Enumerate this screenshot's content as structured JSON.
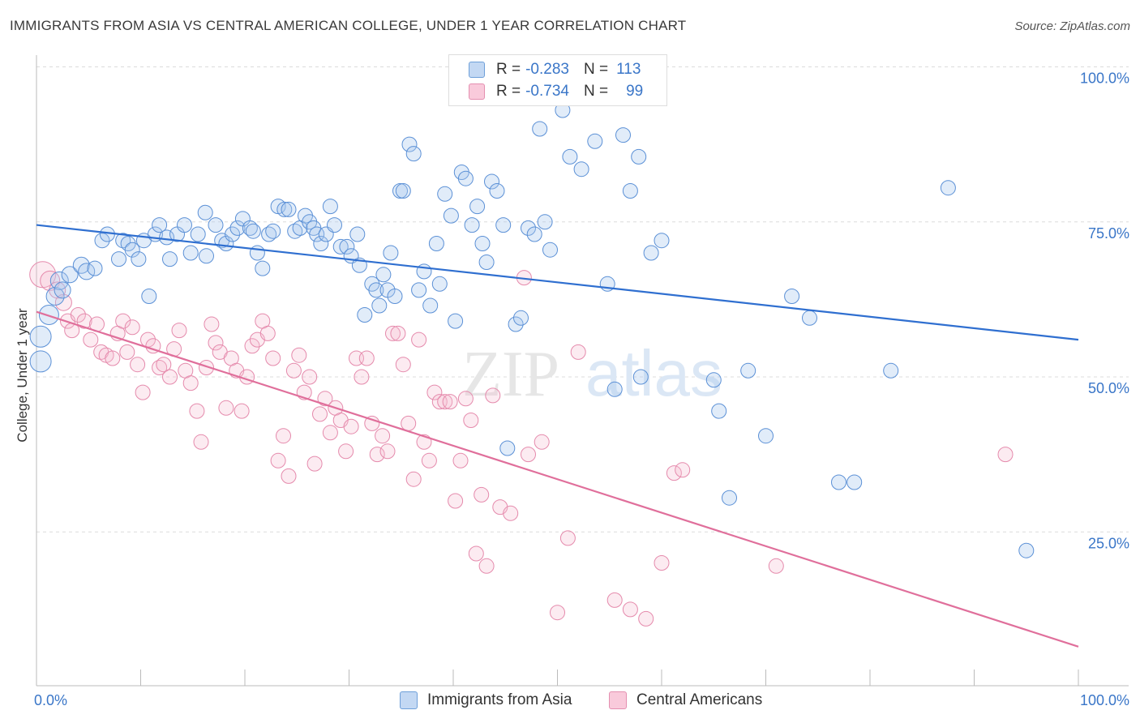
{
  "title": "IMMIGRANTS FROM ASIA VS CENTRAL AMERICAN COLLEGE, UNDER 1 YEAR CORRELATION CHART",
  "source": "Source: ZipAtlas.com",
  "watermark": {
    "zip": "ZIP",
    "atlas": "atlas"
  },
  "legend": {
    "series1": {
      "r_label": "R =",
      "r_value": "-0.283",
      "n_label": "N =",
      "n_value": "113"
    },
    "series2": {
      "r_label": "R =",
      "r_value": "-0.734",
      "n_label": "N =",
      "n_value": "99"
    }
  },
  "colors": {
    "blue": "#3a76c8",
    "blue_fill": "#aac8ee",
    "pink": "#e06f9b",
    "pink_fill": "#f6bcd0",
    "grid": "#dcdcdc"
  },
  "chart_data": {
    "type": "scatter",
    "title": "IMMIGRANTS FROM ASIA VS CENTRAL AMERICAN COLLEGE, UNDER 1 YEAR CORRELATION CHART",
    "xlabel": "",
    "ylabel": "College, Under 1 year",
    "xlim": [
      0,
      100
    ],
    "ylim": [
      0,
      102
    ],
    "x_tick_labels": [
      "0.0%",
      "100.0%"
    ],
    "y_ticks": [
      25,
      50,
      75,
      100
    ],
    "y_tick_labels": [
      "25.0%",
      "50.0%",
      "75.0%",
      "100.0%"
    ],
    "legend_position": "top-center",
    "series": [
      {
        "name": "Immigrants from Asia",
        "color": "#3a76c8",
        "trend": {
          "x": [
            0,
            100
          ],
          "y": [
            74.5,
            56.0
          ]
        },
        "points": [
          [
            0.4,
            52.5,
            13
          ],
          [
            0.4,
            56.5,
            13
          ],
          [
            1.2,
            60,
            12
          ],
          [
            1.8,
            63,
            11
          ],
          [
            2.2,
            65.5,
            11
          ],
          [
            2.5,
            64,
            10
          ],
          [
            3.2,
            66.5,
            10
          ],
          [
            4.3,
            68,
            10
          ],
          [
            4.8,
            67,
            10
          ],
          [
            5.6,
            67.5,
            9
          ],
          [
            6.3,
            72,
            9
          ],
          [
            6.8,
            73,
            9
          ],
          [
            7.9,
            69,
            9
          ],
          [
            8.3,
            72,
            9
          ],
          [
            8.8,
            71.5,
            9
          ],
          [
            9.2,
            70.5,
            9
          ],
          [
            9.8,
            69,
            9
          ],
          [
            10.3,
            72,
            9
          ],
          [
            10.8,
            63,
            9
          ],
          [
            11.4,
            73,
            9
          ],
          [
            11.8,
            74.5,
            9
          ],
          [
            12.5,
            72.5,
            9
          ],
          [
            12.8,
            69,
            9
          ],
          [
            13.5,
            73,
            9
          ],
          [
            14.2,
            74.5,
            9
          ],
          [
            14.8,
            70,
            9
          ],
          [
            15.5,
            73,
            9
          ],
          [
            16.2,
            76.5,
            9
          ],
          [
            16.3,
            69.5,
            9
          ],
          [
            17.2,
            74.5,
            9
          ],
          [
            17.8,
            72,
            9
          ],
          [
            18.2,
            71.5,
            9
          ],
          [
            18.8,
            73,
            9
          ],
          [
            19.3,
            74,
            9
          ],
          [
            19.8,
            75.5,
            9
          ],
          [
            20.5,
            74,
            9
          ],
          [
            20.8,
            73.5,
            9
          ],
          [
            21.2,
            70,
            9
          ],
          [
            21.7,
            67.5,
            9
          ],
          [
            22.3,
            73,
            9
          ],
          [
            22.7,
            73.5,
            9
          ],
          [
            23.2,
            77.5,
            9
          ],
          [
            23.8,
            77,
            9
          ],
          [
            24.2,
            77,
            9
          ],
          [
            24.8,
            73.5,
            9
          ],
          [
            25.3,
            74,
            9
          ],
          [
            25.8,
            76,
            9
          ],
          [
            26.2,
            75,
            9
          ],
          [
            26.6,
            74,
            9
          ],
          [
            26.9,
            73,
            9
          ],
          [
            27.3,
            71.5,
            9
          ],
          [
            27.8,
            73,
            9
          ],
          [
            28.2,
            77.5,
            9
          ],
          [
            28.6,
            74.5,
            9
          ],
          [
            29.2,
            71,
            9
          ],
          [
            29.8,
            71,
            9
          ],
          [
            30.2,
            69.5,
            9
          ],
          [
            30.8,
            73,
            9
          ],
          [
            31.0,
            68,
            9
          ],
          [
            31.5,
            60,
            9
          ],
          [
            32.2,
            65,
            9
          ],
          [
            32.6,
            64,
            9
          ],
          [
            32.9,
            61.5,
            9
          ],
          [
            33.3,
            66.5,
            9
          ],
          [
            33.7,
            64,
            9
          ],
          [
            34.0,
            70,
            9
          ],
          [
            34.4,
            63,
            9
          ],
          [
            34.9,
            80,
            9
          ],
          [
            35.2,
            80,
            9
          ],
          [
            35.8,
            87.5,
            9
          ],
          [
            36.2,
            86,
            9
          ],
          [
            36.7,
            64,
            9
          ],
          [
            37.2,
            67,
            9
          ],
          [
            37.8,
            61.5,
            9
          ],
          [
            38.4,
            71.5,
            9
          ],
          [
            38.7,
            65,
            9
          ],
          [
            39.2,
            79.5,
            9
          ],
          [
            39.8,
            76,
            9
          ],
          [
            40.2,
            59,
            9
          ],
          [
            40.8,
            83,
            9
          ],
          [
            41.2,
            82,
            9
          ],
          [
            41.8,
            74.5,
            9
          ],
          [
            42.3,
            77.5,
            9
          ],
          [
            42.8,
            71.5,
            9
          ],
          [
            43.2,
            68.5,
            9
          ],
          [
            43.7,
            81.5,
            9
          ],
          [
            44.2,
            80,
            9
          ],
          [
            44.8,
            74.5,
            9
          ],
          [
            45.2,
            38.5,
            9
          ],
          [
            46.0,
            58.5,
            9
          ],
          [
            46.5,
            59.5,
            9
          ],
          [
            47.2,
            74,
            9
          ],
          [
            47.8,
            73,
            9
          ],
          [
            48.3,
            90,
            9
          ],
          [
            48.8,
            75,
            9
          ],
          [
            49.3,
            70.5,
            9
          ],
          [
            50.5,
            93,
            9
          ],
          [
            51.2,
            85.5,
            9
          ],
          [
            52.3,
            83.5,
            9
          ],
          [
            53.6,
            88,
            9
          ],
          [
            54.8,
            65,
            9
          ],
          [
            55.5,
            48,
            9
          ],
          [
            56.3,
            89,
            9
          ],
          [
            57.0,
            80,
            9
          ],
          [
            57.8,
            85.5,
            9
          ],
          [
            58.0,
            50,
            9
          ],
          [
            59.0,
            70,
            9
          ],
          [
            60.0,
            72,
            9
          ],
          [
            65.0,
            49.5,
            9
          ],
          [
            65.5,
            44.5,
            9
          ],
          [
            66.5,
            30.5,
            9
          ],
          [
            68.3,
            51,
            9
          ],
          [
            70.0,
            40.5,
            9
          ],
          [
            72.5,
            63,
            9
          ],
          [
            74.2,
            59.5,
            9
          ],
          [
            77.0,
            33,
            9
          ],
          [
            78.5,
            33,
            9
          ],
          [
            82.0,
            51,
            9
          ],
          [
            87.5,
            80.5,
            9
          ],
          [
            95.0,
            22,
            9
          ]
        ]
      },
      {
        "name": "Central Americans",
        "color": "#e06f9b",
        "trend": {
          "x": [
            0,
            100
          ],
          "y": [
            60.5,
            6.5
          ]
        },
        "points": [
          [
            0.6,
            66.5,
            16
          ],
          [
            1.3,
            65.5,
            12
          ],
          [
            2.0,
            64,
            10
          ],
          [
            2.6,
            62,
            10
          ],
          [
            3.0,
            59,
            9
          ],
          [
            3.4,
            57.5,
            9
          ],
          [
            4.0,
            60,
            9
          ],
          [
            4.6,
            59,
            9
          ],
          [
            5.2,
            56,
            9
          ],
          [
            5.8,
            58.5,
            9
          ],
          [
            6.2,
            54,
            9
          ],
          [
            6.7,
            53.5,
            9
          ],
          [
            7.3,
            53,
            9
          ],
          [
            7.8,
            57,
            9
          ],
          [
            8.3,
            59,
            9
          ],
          [
            8.7,
            54,
            9
          ],
          [
            9.2,
            58,
            9
          ],
          [
            9.7,
            52,
            9
          ],
          [
            10.2,
            47.5,
            9
          ],
          [
            10.7,
            56,
            9
          ],
          [
            11.2,
            55,
            9
          ],
          [
            11.8,
            51.5,
            9
          ],
          [
            12.2,
            52,
            9
          ],
          [
            12.8,
            50,
            9
          ],
          [
            13.2,
            54.5,
            9
          ],
          [
            13.7,
            57.5,
            9
          ],
          [
            14.3,
            51,
            9
          ],
          [
            14.8,
            49,
            9
          ],
          [
            15.4,
            44.5,
            9
          ],
          [
            15.8,
            39.5,
            9
          ],
          [
            16.3,
            51.5,
            9
          ],
          [
            16.8,
            58.5,
            9
          ],
          [
            17.2,
            55.5,
            9
          ],
          [
            17.6,
            54,
            9
          ],
          [
            18.2,
            45,
            9
          ],
          [
            18.7,
            53,
            9
          ],
          [
            19.2,
            51,
            9
          ],
          [
            19.7,
            44.5,
            9
          ],
          [
            20.2,
            50,
            9
          ],
          [
            20.7,
            55,
            9
          ],
          [
            21.2,
            56,
            9
          ],
          [
            21.7,
            59,
            9
          ],
          [
            22.2,
            57,
            9
          ],
          [
            22.7,
            53,
            9
          ],
          [
            23.2,
            36.5,
            9
          ],
          [
            23.7,
            40.5,
            9
          ],
          [
            24.2,
            34,
            9
          ],
          [
            24.7,
            51,
            9
          ],
          [
            25.2,
            53.5,
            9
          ],
          [
            25.7,
            47.5,
            9
          ],
          [
            26.2,
            50,
            9
          ],
          [
            26.7,
            36,
            9
          ],
          [
            27.2,
            44,
            9
          ],
          [
            27.7,
            46.5,
            9
          ],
          [
            28.2,
            41,
            9
          ],
          [
            28.7,
            45,
            9
          ],
          [
            29.2,
            43,
            9
          ],
          [
            29.7,
            38,
            9
          ],
          [
            30.2,
            42,
            9
          ],
          [
            30.7,
            53,
            9
          ],
          [
            31.2,
            50,
            9
          ],
          [
            31.7,
            53,
            9
          ],
          [
            32.2,
            42.5,
            9
          ],
          [
            32.7,
            37.5,
            9
          ],
          [
            33.2,
            40.5,
            9
          ],
          [
            33.7,
            38,
            9
          ],
          [
            34.2,
            57,
            9
          ],
          [
            34.7,
            57,
            9
          ],
          [
            35.2,
            52,
            9
          ],
          [
            35.7,
            42.5,
            9
          ],
          [
            36.2,
            33.5,
            9
          ],
          [
            36.7,
            56,
            9
          ],
          [
            37.2,
            39.5,
            9
          ],
          [
            37.7,
            36.5,
            9
          ],
          [
            38.2,
            47.5,
            9
          ],
          [
            38.7,
            46,
            9
          ],
          [
            39.2,
            46,
            9
          ],
          [
            39.7,
            46,
            9
          ],
          [
            40.2,
            30,
            9
          ],
          [
            40.7,
            36.5,
            9
          ],
          [
            41.2,
            46.5,
            9
          ],
          [
            41.7,
            43,
            9
          ],
          [
            42.2,
            21.5,
            9
          ],
          [
            42.7,
            31,
            9
          ],
          [
            43.2,
            19.5,
            9
          ],
          [
            43.8,
            47,
            9
          ],
          [
            44.5,
            29,
            9
          ],
          [
            45.5,
            28,
            9
          ],
          [
            46.8,
            66,
            9
          ],
          [
            47.2,
            37.5,
            9
          ],
          [
            48.5,
            39.5,
            9
          ],
          [
            50.0,
            12,
            9
          ],
          [
            51.0,
            24,
            9
          ],
          [
            52.0,
            54,
            9
          ],
          [
            55.5,
            14,
            9
          ],
          [
            57.0,
            12.5,
            9
          ],
          [
            58.5,
            11,
            9
          ],
          [
            60.0,
            20,
            9
          ],
          [
            61.2,
            34.5,
            9
          ],
          [
            62.0,
            35,
            9
          ],
          [
            71.0,
            19.5,
            9
          ],
          [
            93.0,
            37.5,
            9
          ]
        ]
      }
    ]
  },
  "bottom_legend": {
    "series1_label": "Immigrants from Asia",
    "series2_label": "Central Americans"
  }
}
